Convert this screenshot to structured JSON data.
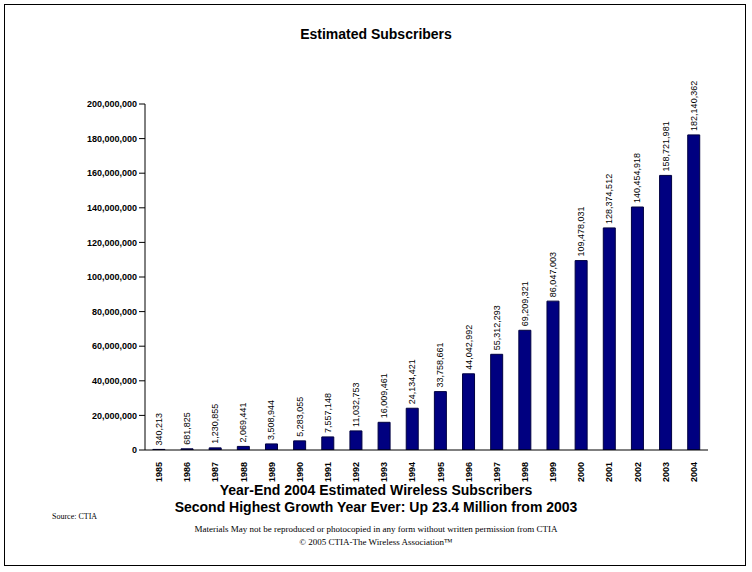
{
  "chart_data": {
    "type": "bar",
    "title": "Estimated Subscribers",
    "subtitle": "Year-End 2004 Estimated Wireless Subscribers",
    "annotations": [
      "Second Highest Growth Year Ever: Up 23.4 Million from 2003",
      "Source: CTIA",
      "Materials May not be reproduced or photocopied in any form without written permission from CTIA",
      "© 2005 CTIA-The Wireless Association™"
    ],
    "categories": [
      "1985",
      "1986",
      "1987",
      "1988",
      "1989",
      "1990",
      "1991",
      "1992",
      "1993",
      "1994",
      "1995",
      "1996",
      "1997",
      "1998",
      "1999",
      "2000",
      "2001",
      "2002",
      "2003",
      "2004"
    ],
    "values": [
      340213,
      681825,
      1230855,
      2069441,
      3508944,
      5283055,
      7557148,
      11032753,
      16009461,
      24134421,
      33758661,
      44042992,
      55312293,
      69209321,
      86047003,
      109478031,
      128374512,
      140454918,
      158721981,
      182140362
    ],
    "value_labels": [
      "340,213",
      "681,825",
      "1,230,855",
      "2,069,441",
      "3,508,944",
      "5,283,055",
      "7,557,148",
      "11,032,753",
      "16,009,461",
      "24,134,421",
      "33,758,661",
      "44,042,992",
      "55,312,293",
      "69,209,321",
      "86,047,003",
      "109,478,031",
      "128,374,512",
      "140,454,918",
      "158,721,981",
      "182,140,362"
    ],
    "color": "#000080",
    "ylim": [
      0,
      200000000
    ],
    "yticks": [
      0,
      {
        "value": 20000000,
        "label": "20,000,000"
      },
      {
        "value": 40000000,
        "label": "40,000,000"
      },
      {
        "value": 60000000,
        "label": "60,000,000"
      },
      {
        "value": 80000000,
        "label": "80,000,000"
      },
      {
        "value": 100000000,
        "label": "100,000,000"
      },
      {
        "value": 120000000,
        "label": "120,000,000"
      },
      {
        "value": 140000000,
        "label": "140,000,000"
      },
      {
        "value": 160000000,
        "label": "160,000,000"
      },
      {
        "value": 180000000,
        "label": "180,000,000"
      },
      {
        "value": 200000000,
        "label": "200,000,000"
      }
    ],
    "grid": false,
    "data_labels": true
  }
}
